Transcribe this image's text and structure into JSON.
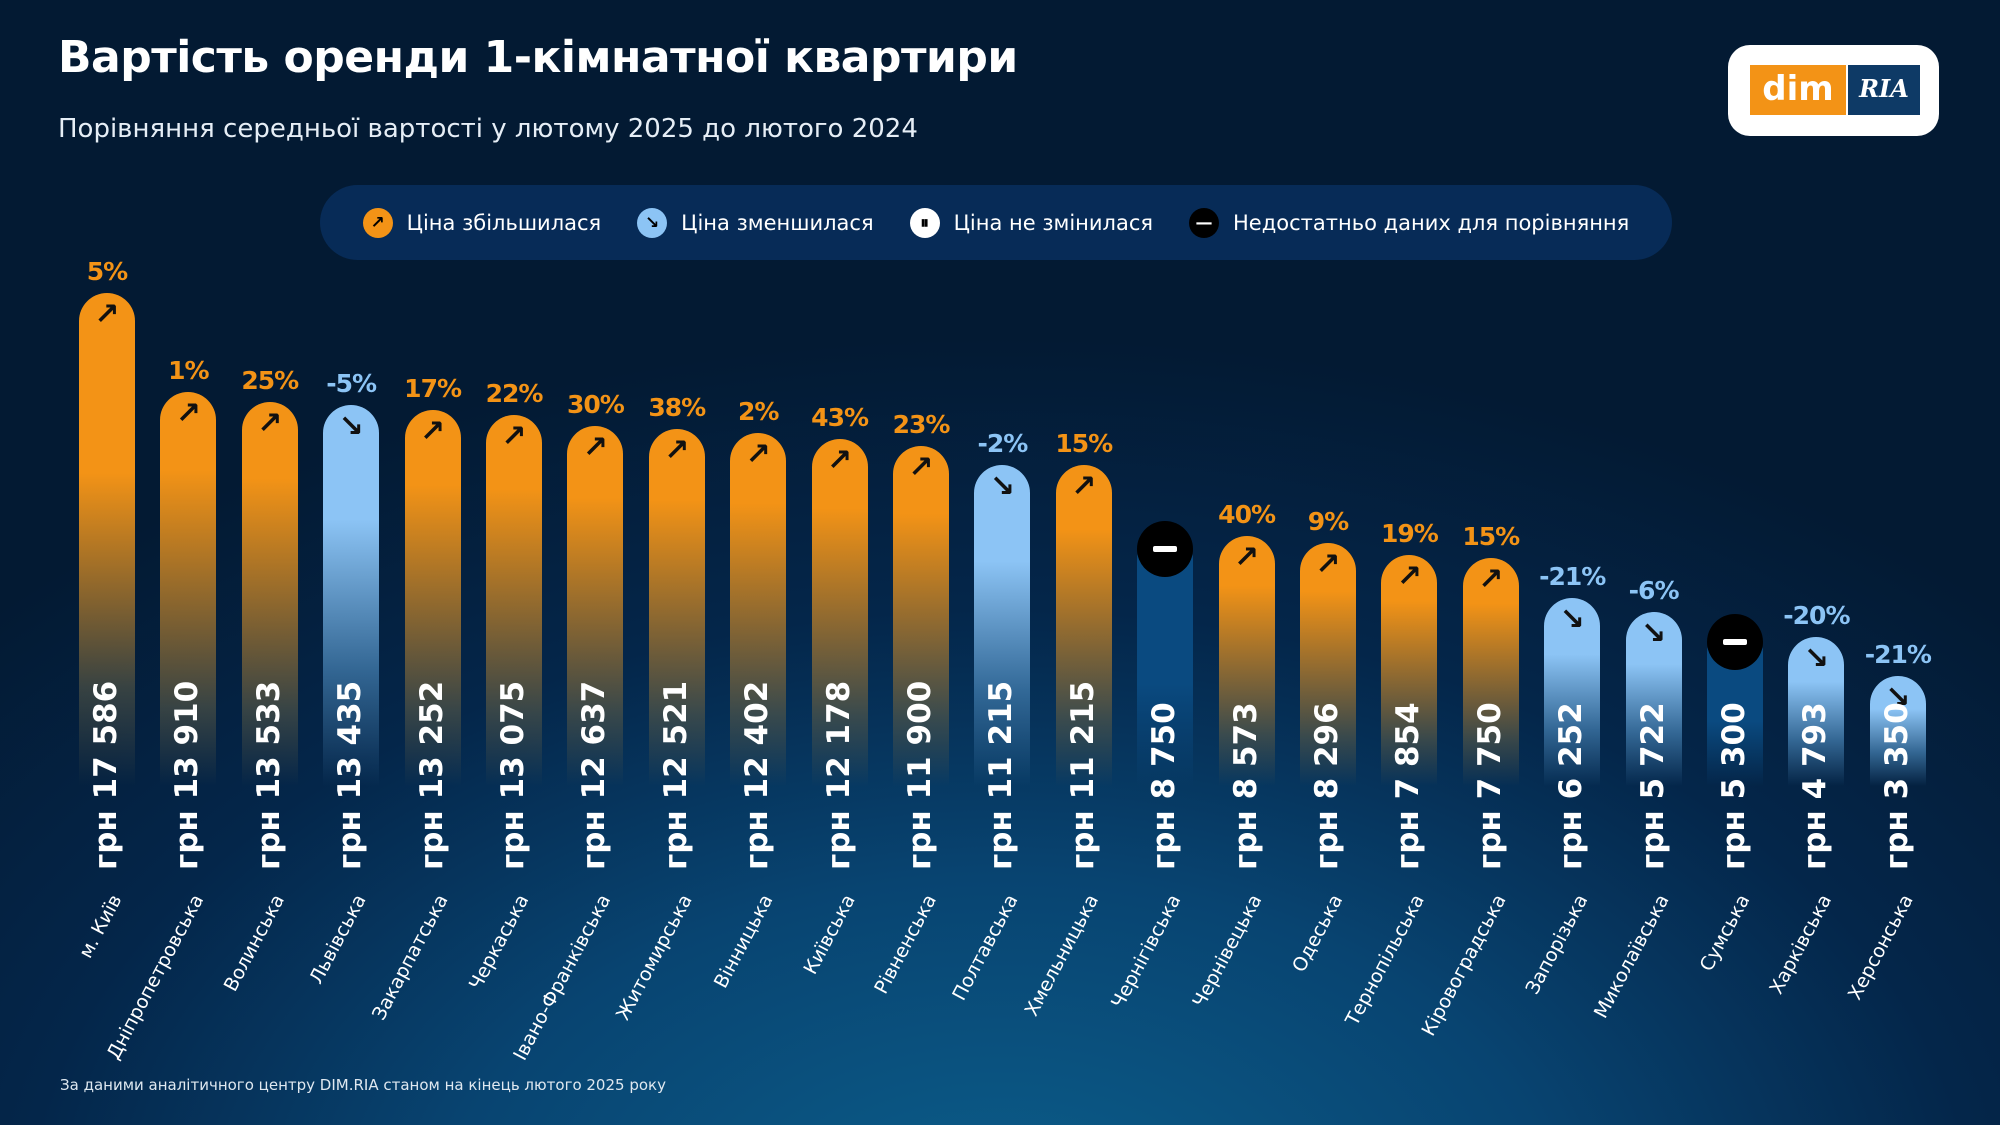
{
  "header": {
    "title": "Вартість оренди 1-кімнатної квартири",
    "subtitle": "Порівняння середньої вартості у лютому 2025 до лютого 2024"
  },
  "logo": {
    "left": "dim",
    "right": "RIA"
  },
  "legend": [
    {
      "label": "Ціна збільшилася",
      "status": "up",
      "icon": "arrow-up-right-icon"
    },
    {
      "label": "Ціна зменшилася",
      "status": "down",
      "icon": "arrow-down-right-icon"
    },
    {
      "label": "Ціна не змінилася",
      "status": "same",
      "icon": "pause-icon"
    },
    {
      "label": "Недостатньо даних для порівняння",
      "status": "nodata",
      "icon": "minus-icon"
    }
  ],
  "colors": {
    "up": "#F39316",
    "down": "#8CC4F5",
    "same": "#FFFFFF",
    "nodata": "#0A4A80",
    "background": "#04264A"
  },
  "chart_data": {
    "type": "bar",
    "title": "Вартість оренди 1-кімнатної квартири",
    "currency_prefix": "грн",
    "categories": [
      "м. Київ",
      "Дніпропетровська",
      "Волинська",
      "Львівська",
      "Закарпатська",
      "Черкаська",
      "Івано-Франківська",
      "Житомирська",
      "Вінницька",
      "Київська",
      "Рівненська",
      "Полтавська",
      "Хмельницька",
      "Чернігівська",
      "Чернівецька",
      "Одеська",
      "Тернопільська",
      "Кіровоградська",
      "Запорізька",
      "Миколаївська",
      "Сумська",
      "Харківська",
      "Херсонська"
    ],
    "values": [
      17586,
      13910,
      13533,
      13435,
      13252,
      13075,
      12637,
      12521,
      12402,
      12178,
      11900,
      11215,
      11215,
      8750,
      8573,
      8296,
      7854,
      7750,
      6252,
      5722,
      5300,
      4793,
      3350
    ],
    "value_labels": [
      "17 586",
      "13 910",
      "13 533",
      "13 435",
      "13 252",
      "13 075",
      "12 637",
      "12 521",
      "12 402",
      "12 178",
      "11 900",
      "11 215",
      "11 215",
      "8 750",
      "8 573",
      "8 296",
      "7 854",
      "7 750",
      "6 252",
      "5 722",
      "5 300",
      "4 793",
      "3 350"
    ],
    "change_labels": [
      "5%",
      "1%",
      "25%",
      "-5%",
      "17%",
      "22%",
      "30%",
      "38%",
      "2%",
      "43%",
      "23%",
      "-2%",
      "15%",
      "",
      "40%",
      "9%",
      "19%",
      "15%",
      "-21%",
      "-6%",
      "",
      "-20%",
      "-21%"
    ],
    "status": [
      "up",
      "up",
      "up",
      "down",
      "up",
      "up",
      "up",
      "up",
      "up",
      "up",
      "up",
      "down",
      "up",
      "nodata",
      "up",
      "up",
      "up",
      "up",
      "down",
      "down",
      "nodata",
      "down",
      "down"
    ]
  },
  "footer": "За даними аналітичного центру DIM.RIA станом на кінець лютого 2025 року"
}
